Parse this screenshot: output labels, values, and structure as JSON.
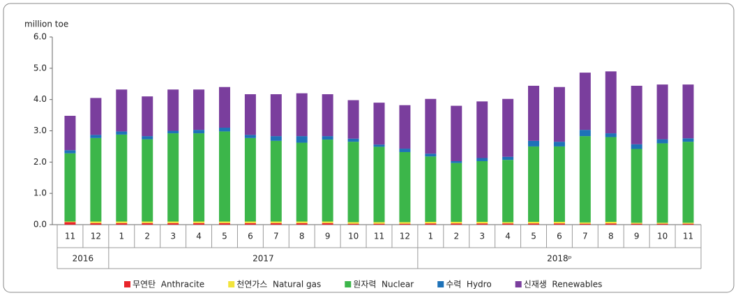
{
  "chart_data": {
    "type": "stacked-bar",
    "y_label": "million  toe",
    "ylim": [
      0,
      6
    ],
    "yticks": [
      {
        "value": 0,
        "label": "0.0"
      },
      {
        "value": 1,
        "label": "1.0"
      },
      {
        "value": 2,
        "label": "2.0"
      },
      {
        "value": 3,
        "label": "3.0"
      },
      {
        "value": 4,
        "label": "4.0"
      },
      {
        "value": 5,
        "label": "5.0"
      },
      {
        "value": 6,
        "label": "6.0"
      }
    ],
    "categories": [
      "11",
      "12",
      "1",
      "2",
      "3",
      "4",
      "5",
      "6",
      "7",
      "8",
      "9",
      "10",
      "11",
      "12",
      "1",
      "2",
      "3",
      "4",
      "5",
      "6",
      "7",
      "8",
      "9",
      "10",
      "11"
    ],
    "groups": [
      {
        "label": "2016",
        "count": 2
      },
      {
        "label": "2017",
        "count": 12
      },
      {
        "label": "2018ᵖ",
        "count": 11
      }
    ],
    "series": [
      {
        "name": "무연탄  Anthracite",
        "color": "#e8252b",
        "values": [
          0.08,
          0.05,
          0.05,
          0.05,
          0.05,
          0.05,
          0.05,
          0.05,
          0.05,
          0.05,
          0.05,
          0.03,
          0.03,
          0.03,
          0.04,
          0.04,
          0.04,
          0.04,
          0.04,
          0.04,
          0.03,
          0.04,
          0.03,
          0.03,
          0.03
        ]
      },
      {
        "name": "천연가스  Natural gas",
        "color": "#f2e43c",
        "values": [
          0.02,
          0.05,
          0.05,
          0.05,
          0.05,
          0.05,
          0.05,
          0.05,
          0.05,
          0.05,
          0.05,
          0.05,
          0.05,
          0.05,
          0.05,
          0.05,
          0.05,
          0.04,
          0.05,
          0.05,
          0.04,
          0.05,
          0.03,
          0.03,
          0.03
        ]
      },
      {
        "name": "원자력  Nuclear",
        "color": "#3cb64a",
        "values": [
          2.18,
          2.67,
          2.78,
          2.63,
          2.82,
          2.82,
          2.88,
          2.67,
          2.58,
          2.52,
          2.62,
          2.57,
          2.41,
          2.24,
          2.09,
          1.88,
          1.94,
          1.99,
          2.41,
          2.41,
          2.76,
          2.71,
          2.36,
          2.54,
          2.59
        ]
      },
      {
        "name": "수력  Hydro",
        "color": "#1e72b8",
        "values": [
          0.1,
          0.1,
          0.1,
          0.1,
          0.08,
          0.11,
          0.12,
          0.1,
          0.15,
          0.21,
          0.11,
          0.1,
          0.07,
          0.11,
          0.09,
          0.06,
          0.1,
          0.1,
          0.18,
          0.15,
          0.2,
          0.12,
          0.15,
          0.13,
          0.11
        ]
      },
      {
        "name": "신재생  Renewables",
        "color": "#7a3e9d",
        "values": [
          1.1,
          1.18,
          1.34,
          1.27,
          1.32,
          1.29,
          1.3,
          1.3,
          1.34,
          1.37,
          1.34,
          1.23,
          1.34,
          1.39,
          1.75,
          1.77,
          1.81,
          1.85,
          1.76,
          1.75,
          1.83,
          1.98,
          1.87,
          1.75,
          1.72
        ]
      }
    ]
  }
}
